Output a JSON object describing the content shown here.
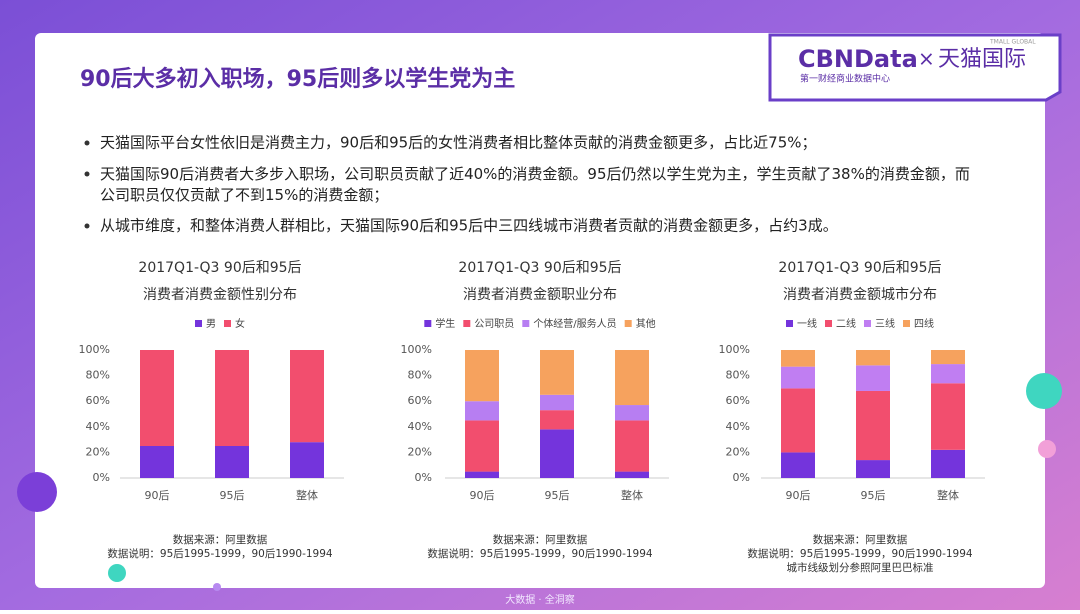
{
  "header": {
    "title": "90后大多初入职场，95后则多以学生党为主"
  },
  "logo": {
    "brand": "CBNData",
    "cross": "×",
    "partner": "天猫国际",
    "tag": "TMALL GLOBAL",
    "subtitle": "第一财经商业数据中心"
  },
  "bullets": [
    "天猫国际平台女性依旧是消费主力，90后和95后的女性消费者相比整体贡献的消费金额更多，占比近75%；",
    "天猫国际90后消费者大多步入职场，公司职员贡献了近40%的消费金额。95后仍然以学生党为主，学生贡献了38%的消费金额，而公司职员仅仅贡献了不到15%的消费金额；",
    "从城市维度，和整体消费人群相比，天猫国际90后和95后中三四线城市消费者贡献的消费金额更多，占约3成。"
  ],
  "footer": "大数据 · 全洞察",
  "chart_data": [
    {
      "type": "stacked_bar",
      "title": [
        "2017Q1-Q3 90后和95后",
        "消费者消费金额性别分布"
      ],
      "categories": [
        "90后",
        "95后",
        "整体"
      ],
      "series": [
        {
          "name": "男",
          "color": "#7434dc",
          "values": [
            25,
            25,
            28
          ]
        },
        {
          "name": "女",
          "color": "#f24e6e",
          "values": [
            75,
            75,
            72
          ]
        }
      ],
      "ylim": [
        0,
        100
      ],
      "yticks": [
        {
          "value": 0,
          "label": "0%"
        },
        {
          "value": 20,
          "label": "20%"
        },
        {
          "value": 40,
          "label": "40%"
        },
        {
          "value": 60,
          "label": "60%"
        },
        {
          "value": 80,
          "label": "80%"
        },
        {
          "value": 100,
          "label": "100%"
        }
      ],
      "notes": [
        "数据来源：阿里数据",
        "数据说明：95后1995-1999，90后1990-1994"
      ]
    },
    {
      "type": "stacked_bar",
      "title": [
        "2017Q1-Q3 90后和95后",
        "消费者消费金额职业分布"
      ],
      "categories": [
        "90后",
        "95后",
        "整体"
      ],
      "series": [
        {
          "name": "学生",
          "color": "#7434dc",
          "values": [
            5,
            38,
            5
          ]
        },
        {
          "name": "公司职员",
          "color": "#f24e6e",
          "values": [
            40,
            15,
            40
          ]
        },
        {
          "name": "个体经营/服务人员",
          "color": "#b77ef2",
          "values": [
            15,
            12,
            12
          ]
        },
        {
          "name": "其他",
          "color": "#f6a25e",
          "values": [
            40,
            35,
            43
          ]
        }
      ],
      "ylim": [
        0,
        100
      ],
      "yticks": [
        {
          "value": 0,
          "label": "0%"
        },
        {
          "value": 20,
          "label": "20%"
        },
        {
          "value": 40,
          "label": "40%"
        },
        {
          "value": 60,
          "label": "60%"
        },
        {
          "value": 80,
          "label": "80%"
        },
        {
          "value": 100,
          "label": "100%"
        }
      ],
      "notes": [
        "数据来源：阿里数据",
        "数据说明：95后1995-1999，90后1990-1994"
      ]
    },
    {
      "type": "stacked_bar",
      "title": [
        "2017Q1-Q3 90后和95后",
        "消费者消费金额城市分布"
      ],
      "categories": [
        "90后",
        "95后",
        "整体"
      ],
      "series": [
        {
          "name": "一线",
          "color": "#7434dc",
          "values": [
            20,
            14,
            22
          ]
        },
        {
          "name": "二线",
          "color": "#f24e6e",
          "values": [
            50,
            54,
            52
          ]
        },
        {
          "name": "三线",
          "color": "#c07ef2",
          "values": [
            17,
            20,
            15
          ]
        },
        {
          "name": "四线",
          "color": "#f6a25e",
          "values": [
            13,
            12,
            11
          ]
        }
      ],
      "ylim": [
        0,
        100
      ],
      "yticks": [
        {
          "value": 0,
          "label": "0%"
        },
        {
          "value": 20,
          "label": "20%"
        },
        {
          "value": 40,
          "label": "40%"
        },
        {
          "value": 60,
          "label": "60%"
        },
        {
          "value": 80,
          "label": "80%"
        },
        {
          "value": 100,
          "label": "100%"
        }
      ],
      "notes": [
        "数据来源：阿里数据",
        "数据说明：95后1995-1999，90后1990-1994",
        "城市线级划分参照阿里巴巴标准"
      ]
    }
  ]
}
